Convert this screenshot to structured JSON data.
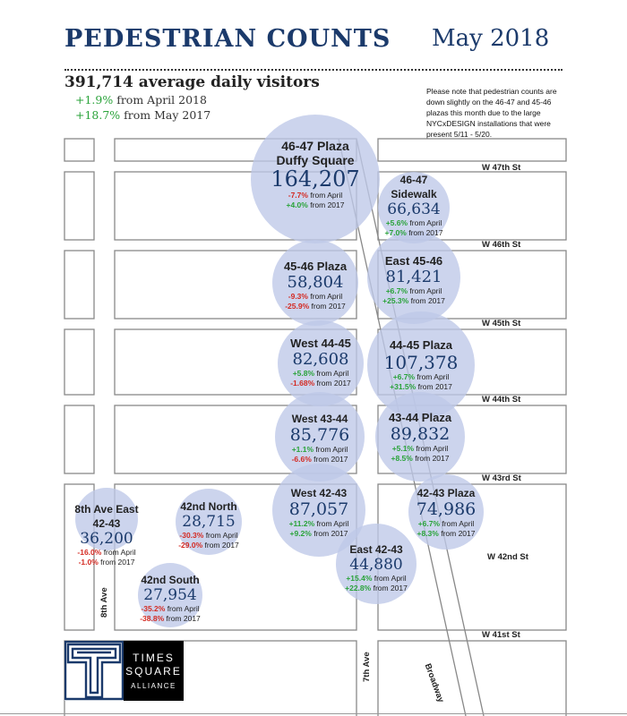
{
  "header": {
    "title": "PEDESTRIAN COUNTS",
    "month": "May 2018"
  },
  "summary": {
    "total": "391,714 average daily visitors",
    "april_change": "+1.9%",
    "april_label": " from April 2018",
    "year_change": "+18.7%",
    "year_label": " from May 2017"
  },
  "note": "Please note that pedestrian counts are down slightly on the 46-47 and 45-46 plazas this month due to the large NYCxDESIGN installations that were present 5/11 - 5/20.",
  "streets": {
    "w47": "W 47th St",
    "w46": "W 46th St",
    "w45": "W 45th St",
    "w44": "W 44th St",
    "w43": "W 43rd St",
    "w42": "W 42nd St",
    "w41": "W 41st St",
    "ave8": "8th Ave",
    "ave7": "7th Ave",
    "broadway": "Broadway"
  },
  "colors": {
    "positive": "#2aa33a",
    "negative": "#d42a22",
    "count": "#1b3a6b",
    "bubble": "#bec8e8"
  },
  "locations": [
    {
      "id": "duffy",
      "name": "46-47 Plaza",
      "name2": "Duffy Square",
      "count": "164,207",
      "april": "-7.7%",
      "year": "+4.0%",
      "april_label": " from April",
      "year_label": " from 2017"
    },
    {
      "id": "sidewalk",
      "name": "46-47",
      "name2": "Sidewalk",
      "count": "66,634",
      "april": "+5.6%",
      "year": "+7.0%",
      "april_label": " from April",
      "year_label": " from 2017"
    },
    {
      "id": "p4546",
      "name": "45-46 Plaza",
      "count": "58,804",
      "april": "-9.3%",
      "year": "-25.9%",
      "april_label": " from April",
      "year_label": " from 2017"
    },
    {
      "id": "e4546",
      "name": "East 45-46",
      "count": "81,421",
      "april": "+6.7%",
      "year": "+25.3%",
      "april_label": " from April",
      "year_label": " from 2017"
    },
    {
      "id": "w4445",
      "name": "West 44-45",
      "count": "82,608",
      "april": "+5.8%",
      "year": "-1.68%",
      "april_label": " from April",
      "year_label": " from 2017"
    },
    {
      "id": "p4445",
      "name": "44-45 Plaza",
      "count": "107,378",
      "april": "+6.7%",
      "year": "+31.5%",
      "april_label": " from April",
      "year_label": " from 2017"
    },
    {
      "id": "w4344",
      "name": "West 43-44",
      "count": "85,776",
      "april": "+1.1%",
      "year": "-6.6%",
      "april_label": " from April",
      "year_label": " from 2017"
    },
    {
      "id": "p4344",
      "name": "43-44 Plaza",
      "count": "89,832",
      "april": "+5.1%",
      "year": "+8.5%",
      "april_label": " from April",
      "year_label": " from 2017"
    },
    {
      "id": "w4243",
      "name": "West 42-43",
      "count": "87,057",
      "april": "+11.2%",
      "year": "+9.2%",
      "april_label": " from April",
      "year_label": " from 2017"
    },
    {
      "id": "p4243",
      "name": "42-43 Plaza",
      "count": "74,986",
      "april": "+6.7%",
      "year": "+8.3%",
      "april_label": " from April",
      "year_label": " from 2017"
    },
    {
      "id": "e4243",
      "name": "East 42-43",
      "count": "44,880",
      "april": "+15.4%",
      "year": "+22.8%",
      "april_label": " from April",
      "year_label": " from 2017"
    },
    {
      "id": "ave8e",
      "name": "8th Ave East",
      "name2": "42-43",
      "count": "36,200",
      "april": "-16.0%",
      "year": "-1.0%",
      "april_label": " from April",
      "year_label": " from 2017"
    },
    {
      "id": "n42",
      "name": "42nd North",
      "count": "28,715",
      "april": "-30.3%",
      "year": "-29.0%",
      "april_label": " from April",
      "year_label": " from 2017"
    },
    {
      "id": "s42",
      "name": "42nd South",
      "count": "27,954",
      "april": "-35.2%",
      "year": "-38.8%",
      "april_label": " from April",
      "year_label": " from 2017"
    }
  ],
  "logo": {
    "line1": "TIMES",
    "line2": "SQUARE",
    "line3": "ALLIANCE"
  }
}
